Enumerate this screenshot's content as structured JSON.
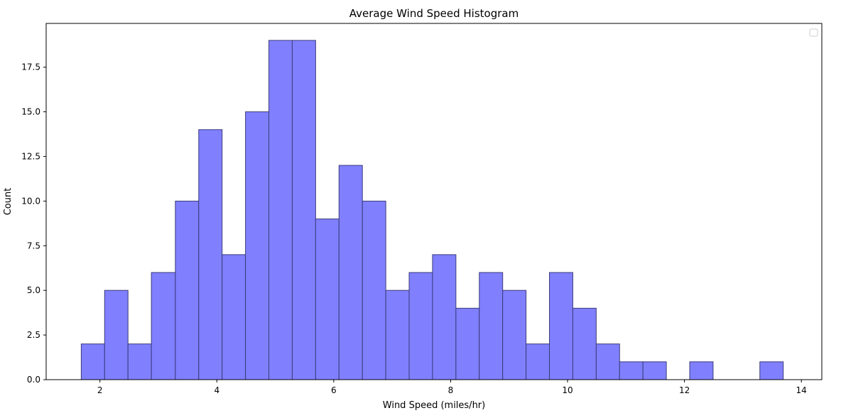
{
  "chart_data": {
    "type": "bar",
    "title": "Average Wind Speed Histogram",
    "xlabel": "Wind Speed (miles/hr)",
    "ylabel": "Count",
    "xlim": [
      1.08,
      14.35
    ],
    "ylim": [
      0,
      19.95
    ],
    "xticks": [
      2,
      4,
      6,
      8,
      10,
      12,
      14
    ],
    "yticks": [
      0.0,
      2.5,
      5.0,
      7.5,
      10.0,
      12.5,
      15.0,
      17.5
    ],
    "bin_edges": [
      1.68,
      2.08,
      2.48,
      2.88,
      3.29,
      3.69,
      4.09,
      4.49,
      4.89,
      5.29,
      5.69,
      6.09,
      6.49,
      6.89,
      7.29,
      7.69,
      8.09,
      8.49,
      8.89,
      9.29,
      9.69,
      10.09,
      10.49,
      10.89,
      11.29,
      11.69,
      12.09,
      12.49,
      12.89,
      13.29,
      13.69
    ],
    "values": [
      2,
      5,
      2,
      6,
      10,
      14,
      7,
      15,
      19,
      19,
      9,
      12,
      10,
      5,
      6,
      7,
      4,
      6,
      5,
      2,
      6,
      4,
      2,
      1,
      1,
      0,
      1,
      0,
      0,
      1
    ],
    "bar_color": "#8080ff",
    "edge_color": "#3a3a7a",
    "grid": false,
    "legend": {
      "position": "top-right",
      "entries": []
    }
  }
}
